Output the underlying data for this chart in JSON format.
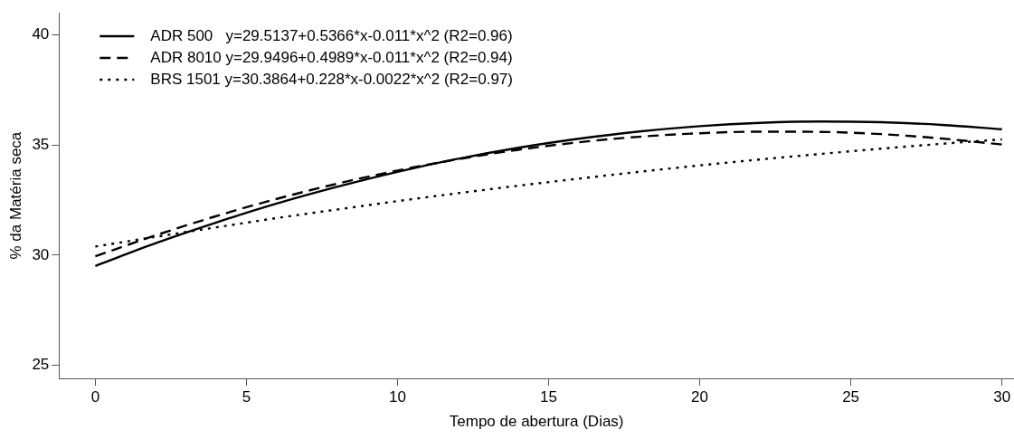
{
  "chart_data": {
    "type": "line",
    "xlabel": "Tempo de abertura (Dias)",
    "ylabel": "% da Matéria seca",
    "x": [
      0,
      2,
      4,
      6,
      8,
      10,
      12,
      14,
      16,
      18,
      20,
      22,
      24,
      26,
      28,
      30
    ],
    "xlim": [
      -1.2,
      30.4
    ],
    "xticks": [
      0,
      5,
      10,
      15,
      20,
      25,
      30
    ],
    "ylim": [
      24.4,
      41
    ],
    "yticks": [
      25,
      30,
      35,
      40
    ],
    "grid": false,
    "legend": "top left",
    "marker": "none",
    "series": [
      {
        "name": "ADR 500   y=29.5137+0.5366*x-0.011*x^2 (R2=0.96)",
        "color": "#000000",
        "line_style": "solid",
        "values": [
          29.51,
          30.54,
          31.48,
          32.34,
          33.1,
          33.78,
          34.37,
          34.87,
          35.28,
          35.61,
          35.85,
          36.0,
          36.06,
          36.03,
          35.91,
          35.71
        ]
      },
      {
        "name": "ADR 8010 y=29.9496+0.4989*x-0.011*x^2 (R2=0.94)",
        "color": "#000000",
        "line_style": "dashed",
        "values": [
          29.95,
          30.9,
          31.77,
          32.55,
          33.24,
          33.84,
          34.35,
          34.78,
          35.12,
          35.37,
          35.53,
          35.6,
          35.59,
          35.49,
          35.29,
          35.02
        ]
      },
      {
        "name": "BRS 1501 y=30.3864+0.228*x-0.0022*x^2 (R2=0.97)",
        "color": "#000000",
        "line_style": "dotted",
        "values": [
          30.39,
          30.83,
          31.26,
          31.68,
          32.07,
          32.45,
          32.81,
          33.15,
          33.47,
          33.78,
          34.07,
          34.34,
          34.59,
          34.83,
          35.05,
          35.25
        ]
      }
    ]
  }
}
